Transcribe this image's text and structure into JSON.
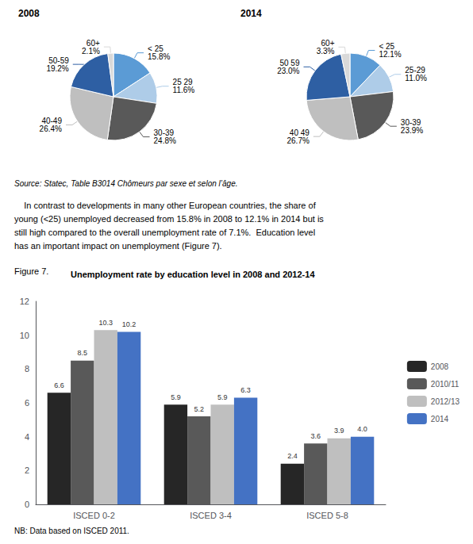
{
  "chart_data": [
    {
      "type": "pie",
      "title": "2008",
      "categories": [
        "< 25",
        "25 29",
        "30-39",
        "40-49",
        "50-59",
        "60+"
      ],
      "values": [
        15.8,
        11.6,
        24.8,
        26.4,
        19.2,
        2.1
      ],
      "value_labels": [
        "15.8%",
        "11.6%",
        "24.8%",
        "26.4%",
        "19.2%",
        "2.1%"
      ],
      "colors": [
        "#5b9bd5",
        "#aecce8",
        "#595959",
        "#bfbfbf",
        "#2e5fa3",
        "#d9d9d9"
      ],
      "data_labels": true,
      "annotations": [
        "Source: Statec, Table B3014 Chômeurs par sexe et selon l’âge."
      ]
    },
    {
      "type": "pie",
      "title": "2014",
      "categories": [
        "< 25",
        "25-29",
        "30-39",
        "40 49",
        "50 59",
        "60+"
      ],
      "values": [
        12.1,
        11.0,
        23.9,
        26.7,
        23.0,
        3.3
      ],
      "value_labels": [
        "12.1%",
        "11.0%",
        "23.9%",
        "26.7%",
        "23.0%",
        "3.3%"
      ],
      "colors": [
        "#5b9bd5",
        "#aecce8",
        "#595959",
        "#bfbfbf",
        "#2e5fa3",
        "#d9d9d9"
      ],
      "data_labels": true
    },
    {
      "type": "bar",
      "title": "Unemployment rate by education level in 2008 and 2012-14",
      "annotations": [
        "    In contrast to developments in many other European countries, the share of\nyoung (<25) unemployed decreased from 15.8% in 2008 to 12.1% in 2014 but is\nstill high compared to the overall unemployment rate of 7.1%.  Education level\nhas an important impact on unemployment (Figure 7).",
        "Figure 7.",
        "NB: Data based on ISCED 2011."
      ],
      "categories": [
        "ISCED 0-2",
        "ISCED 3-4",
        "ISCED 5-8"
      ],
      "series": [
        {
          "name": "2008",
          "color": "#262626",
          "values": [
            6.6,
            5.9,
            2.4
          ],
          "value_labels": [
            "6.6",
            "5.9",
            "2.4"
          ]
        },
        {
          "name": "2010/11",
          "color": "#595959",
          "values": [
            8.5,
            5.2,
            3.6
          ],
          "value_labels": [
            "8.5",
            "5.2",
            "3.6"
          ]
        },
        {
          "name": "2012/13",
          "color": "#bfbfbf",
          "values": [
            10.3,
            5.9,
            3.9
          ],
          "value_labels": [
            "10.3",
            "5.9",
            "3.9"
          ]
        },
        {
          "name": "2014",
          "color": "#4472c4",
          "values": [
            10.2,
            6.3,
            4.0
          ],
          "value_labels": [
            "10.2",
            "6.3",
            "4.0"
          ]
        }
      ],
      "ylim": [
        0,
        12
      ],
      "yticks": [
        0,
        2,
        4,
        6,
        8,
        10,
        12
      ],
      "data_labels": true,
      "grid": false,
      "legend": "right"
    }
  ]
}
